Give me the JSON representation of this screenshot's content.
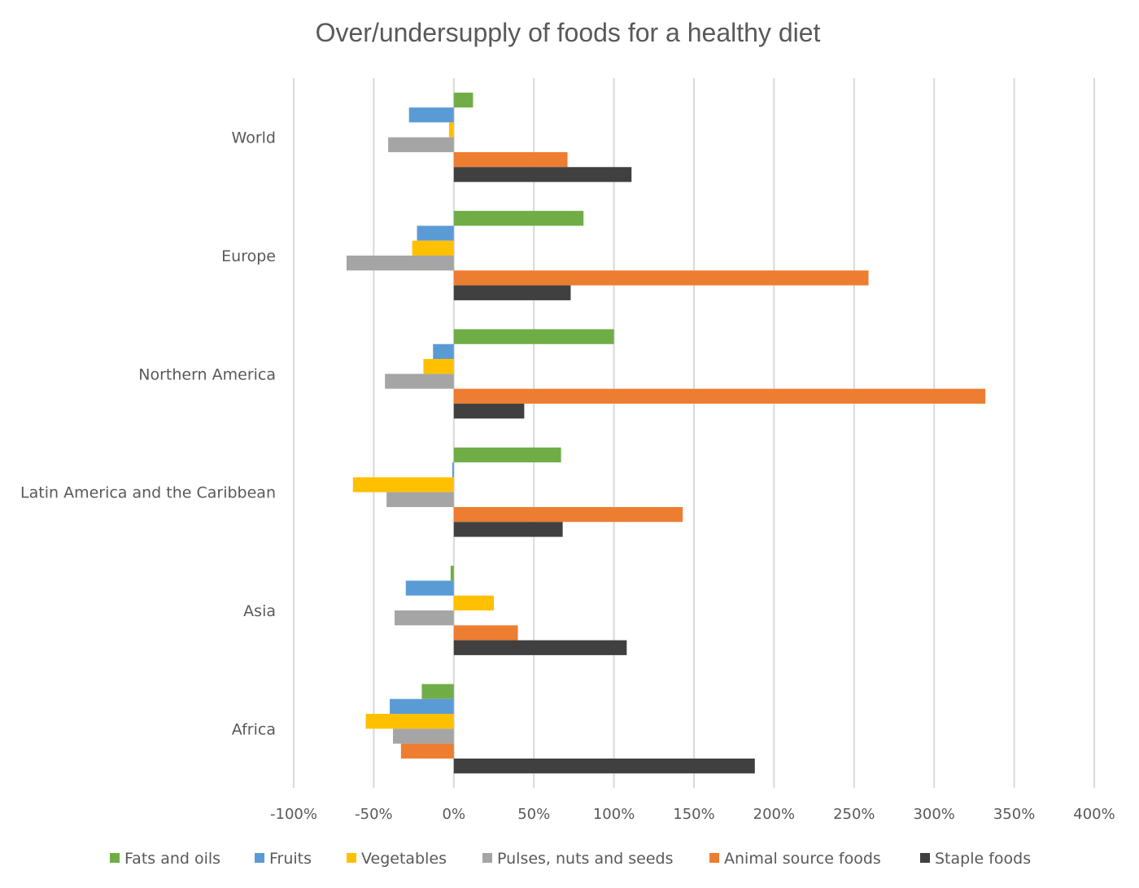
{
  "chart_data": {
    "type": "bar",
    "orientation": "horizontal",
    "title": "Over/undersupply of foods for a healthy diet",
    "xlabel": "",
    "ylabel": "",
    "categories": [
      "World",
      "Europe",
      "Northern America",
      "Latin America and the Caribbean",
      "Asia",
      "Africa"
    ],
    "series": [
      {
        "name": "Fats and oils",
        "color": "#70ad47",
        "values": [
          12,
          81,
          100,
          67,
          -2,
          -20
        ]
      },
      {
        "name": "Fruits",
        "color": "#5b9bd5",
        "values": [
          -28,
          -23,
          -13,
          -1,
          -30,
          -40
        ]
      },
      {
        "name": "Vegetables",
        "color": "#ffc000",
        "values": [
          -3,
          -26,
          -19,
          -63,
          25,
          -55
        ]
      },
      {
        "name": "Pulses, nuts and seeds",
        "color": "#a5a5a5",
        "values": [
          -41,
          -67,
          -43,
          -42,
          -37,
          -38
        ]
      },
      {
        "name": "Animal source foods",
        "color": "#ed7d31",
        "values": [
          71,
          259,
          332,
          143,
          40,
          -33
        ]
      },
      {
        "name": "Staple foods",
        "color": "#404040",
        "values": [
          111,
          73,
          44,
          68,
          108,
          188
        ]
      }
    ],
    "xlim": [
      -100,
      400
    ],
    "x_ticks": [
      -100,
      -50,
      0,
      50,
      100,
      150,
      200,
      250,
      300,
      350,
      400
    ],
    "x_tick_labels": [
      "-100%",
      "-50%",
      "0%",
      "50%",
      "100%",
      "150%",
      "200%",
      "250%",
      "300%",
      "350%",
      "400%"
    ],
    "value_unit": "%",
    "grid": "vertical",
    "legend_position": "bottom"
  }
}
